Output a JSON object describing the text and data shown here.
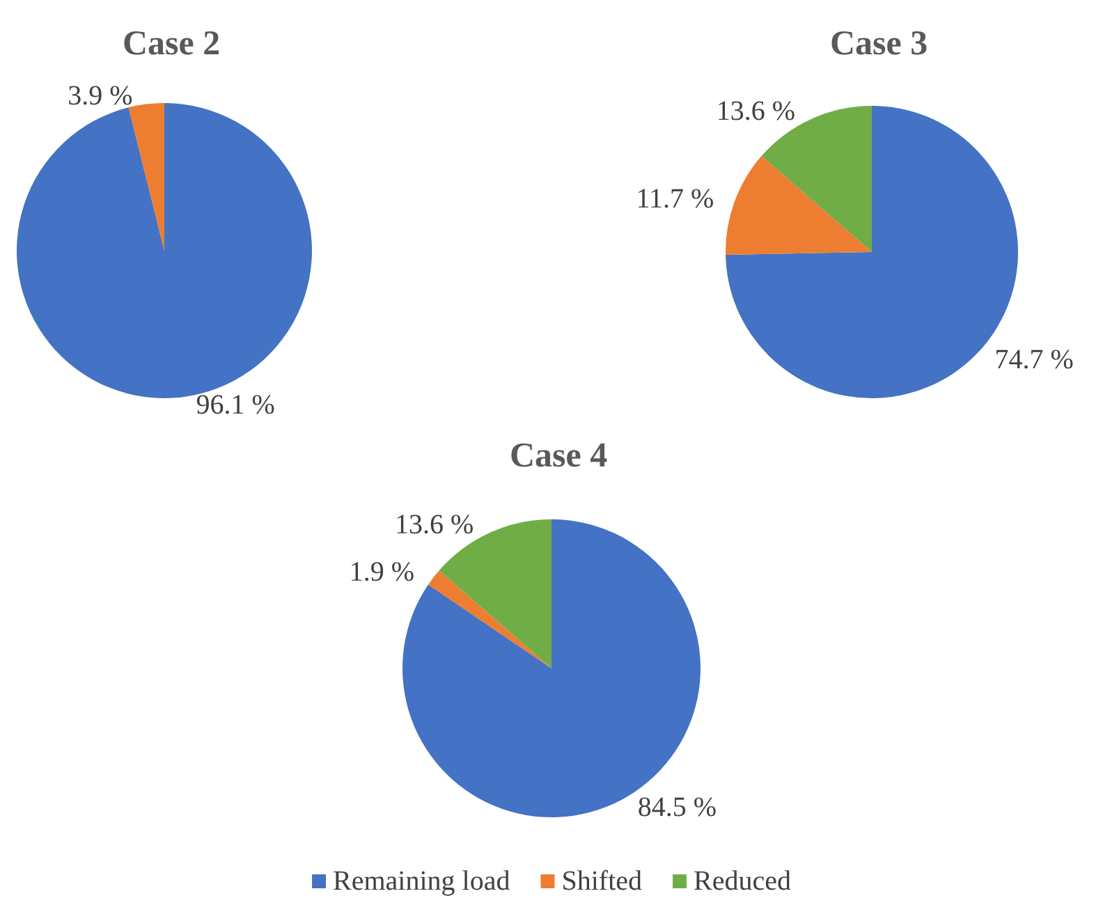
{
  "chart_data": [
    {
      "type": "pie",
      "title": "Case 2",
      "categories": [
        null,
        null
      ],
      "values": [
        96.1,
        3.9
      ],
      "value_labels": [
        "96.1 %",
        "3.9 %"
      ],
      "colors": [
        "#4472c4",
        "#ed7d31"
      ]
    },
    {
      "type": "pie",
      "title": "Case 3",
      "categories": [
        null,
        null,
        null
      ],
      "values": [
        74.7,
        11.7,
        13.6
      ],
      "value_labels": [
        "74.7 %",
        "11.7 %",
        "13.6 %"
      ],
      "colors": [
        "#4472c4",
        "#ed7d31",
        "#70ad47"
      ]
    },
    {
      "type": "pie",
      "title": "Case 4",
      "categories": [
        "Remaining load",
        "Shifted",
        "Reduced"
      ],
      "values": [
        84.5,
        1.9,
        13.6
      ],
      "value_labels": [
        "84.5 %",
        "1.9 %",
        "13.6 %"
      ],
      "colors": [
        "#4472c4",
        "#ed7d31",
        "#70ad47"
      ],
      "legend": "bottom"
    }
  ]
}
